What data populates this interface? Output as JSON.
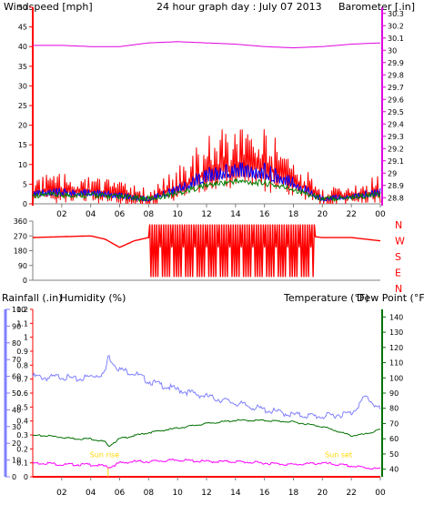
{
  "colors": {
    "wind": "#ff0000",
    "gust_avg": "#0000ff",
    "wind_avg": "#008000",
    "baro": "#e000e0",
    "dir": "#ff0000",
    "humid": "#8080ff",
    "temp": "#007000",
    "dew": "#ff00ff",
    "rain": "#ff0000",
    "frame": "#808080",
    "sun": "#ffd800"
  },
  "header": {
    "left": "Windspeed [mph]",
    "center": "24 hour graph day : July 07 2013",
    "right": "Barometer [.in]"
  },
  "lower_header": {
    "rain": "Rainfall (.in)",
    "humidity": "Humidity (%)",
    "temperature": "Temperature (°F)",
    "dewpoint": "Dew Point (°F)"
  },
  "sun": {
    "rise_label": "Sun rise",
    "set_label": "Sun set",
    "rise_hour": 5.2,
    "set_hour": 20.3
  },
  "x_labels": [
    "02",
    "04",
    "06",
    "08",
    "10",
    "12",
    "14",
    "16",
    "18",
    "20",
    "22",
    "00"
  ],
  "compass": [
    "N",
    "W",
    "S",
    "E",
    "N"
  ],
  "chart_data": [
    {
      "type": "line",
      "title": "24 hour graph day : July 07 2013",
      "x": [
        0,
        2,
        4,
        6,
        8,
        10,
        12,
        14,
        16,
        18,
        20,
        22,
        24
      ],
      "xlabel": "",
      "ylabel": "Windspeed [mph]",
      "ylim": [
        0,
        50
      ],
      "y_ticks": [
        0,
        5,
        10,
        15,
        20,
        25,
        30,
        35,
        40,
        45,
        50
      ],
      "y2_label": "Barometer [.in]",
      "y2_lim": [
        28.75,
        30.35
      ],
      "y2_ticks": [
        "28.8",
        "28.9",
        "29",
        "29.1",
        "29.2",
        "29.3",
        "29.4",
        "29.5",
        "29.6",
        "29.7",
        "29.8",
        "29.9",
        "30",
        "30.1",
        "30.2",
        "30.3"
      ],
      "series": [
        {
          "name": "Windspeed",
          "values": [
            3,
            3,
            3,
            2,
            1,
            4,
            8,
            10,
            9,
            6,
            1,
            2,
            3
          ]
        },
        {
          "name": "Barometer",
          "values": [
            30.04,
            30.04,
            30.03,
            30.03,
            30.06,
            30.07,
            30.06,
            30.05,
            30.03,
            30.02,
            30.03,
            30.05,
            30.06
          ]
        }
      ]
    },
    {
      "type": "scatter",
      "ylabel": "Wind direction",
      "ylim": [
        0,
        360
      ],
      "y_ticks": [
        0,
        45,
        90,
        135,
        180,
        225,
        270,
        315,
        360
      ],
      "x": [
        0,
        2,
        4,
        5,
        6,
        7,
        8,
        9,
        10,
        11,
        12,
        13,
        14,
        15,
        16,
        17,
        18,
        19,
        20,
        22,
        24
      ],
      "values": [
        260,
        265,
        270,
        250,
        200,
        240,
        260,
        30,
        60,
        200,
        40,
        180,
        320,
        30,
        250,
        120,
        300,
        270,
        260,
        260,
        240
      ]
    },
    {
      "type": "line",
      "ylabel": "Rainfall (.in)",
      "ylim": [
        0,
        1.2
      ],
      "y_ticks": [
        "0",
        "0.1",
        "0.2",
        "0.3",
        "0.4",
        "0.5",
        "0.6",
        "0.7",
        "0.8",
        "0.9",
        "1",
        "1.1",
        "1.2"
      ],
      "humidity_ticks": [
        "0",
        "10",
        "20",
        "30",
        "40",
        "50",
        "60",
        "70",
        "80",
        "90",
        "100"
      ],
      "y2_label": "Temperature (°F)",
      "y2_ticks": [
        "40",
        "50",
        "60",
        "70",
        "80",
        "90",
        "100",
        "110",
        "120",
        "130",
        "140"
      ],
      "x": [
        0,
        1,
        2,
        3,
        4,
        5,
        5.2,
        6,
        7,
        8,
        10,
        12,
        14,
        16,
        18,
        20,
        22,
        23,
        24
      ],
      "series": [
        {
          "name": "Humidity",
          "values": [
            60,
            59,
            60,
            58,
            60,
            62,
            72,
            64,
            62,
            57,
            52,
            48,
            44,
            40,
            37,
            36,
            38,
            48,
            40
          ]
        },
        {
          "name": "Temperature",
          "values": [
            62,
            62,
            61,
            60,
            60,
            58,
            55,
            60,
            62,
            64,
            67,
            70,
            72,
            72,
            71,
            68,
            62,
            63,
            66
          ]
        },
        {
          "name": "Dew Point",
          "values": [
            44,
            44,
            43,
            43,
            43,
            42,
            41,
            44,
            45,
            45,
            46,
            45,
            45,
            44,
            43,
            44,
            42,
            41,
            40
          ]
        },
        {
          "name": "Rainfall",
          "values": [
            0,
            0,
            0,
            0,
            0,
            0,
            0,
            0,
            0,
            0,
            0,
            0,
            0,
            0,
            0,
            0,
            0,
            0,
            0
          ]
        }
      ]
    }
  ]
}
